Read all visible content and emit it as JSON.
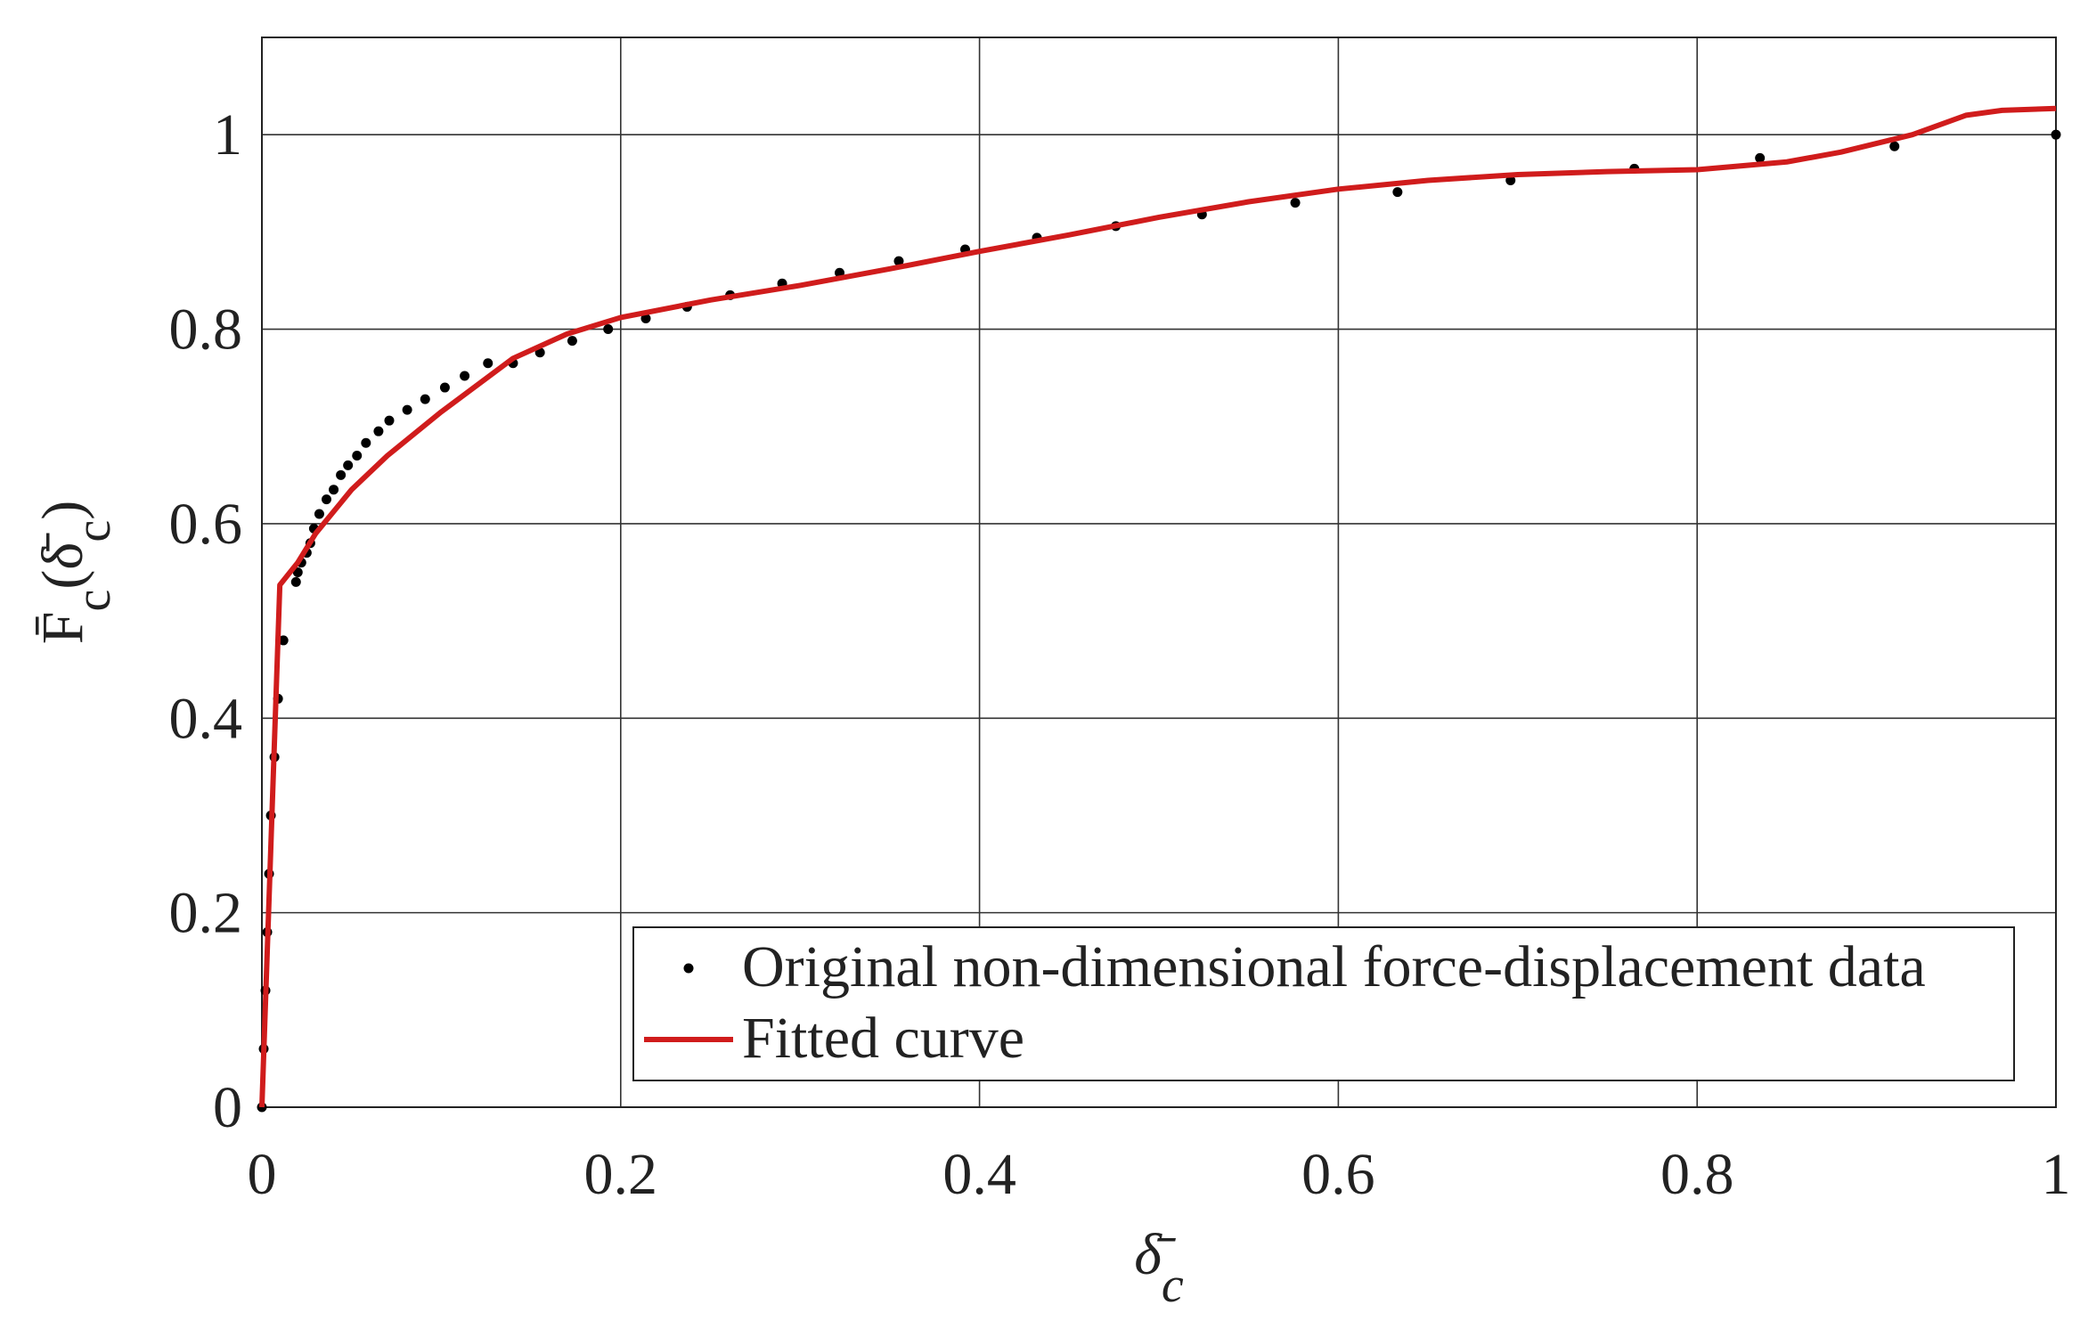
{
  "chart_data": {
    "type": "scatter",
    "xlabel_parts": [
      {
        "text": "δ̄"
      },
      {
        "text": "c",
        "sub": true
      }
    ],
    "ylabel_parts": [
      {
        "text": "F̄"
      },
      {
        "text": "c",
        "sub": true
      },
      {
        "text": "(δ̄"
      },
      {
        "text": "c",
        "sub": true
      },
      {
        "text": ")"
      }
    ],
    "xlim": [
      0,
      1
    ],
    "ylim": [
      0,
      1.1
    ],
    "xticks": [
      0,
      0.2,
      0.4,
      0.6,
      0.8,
      1
    ],
    "yticks": [
      0,
      0.2,
      0.4,
      0.6,
      0.8,
      1
    ],
    "grid": true,
    "legend": "lower right",
    "series": [
      {
        "name": "Original non-dimensional force-displacement data",
        "type": "scatter",
        "color": "#000000",
        "x": [
          0,
          0.001,
          0.002,
          0.003,
          0.004,
          0.005,
          0.007,
          0.009,
          0.012,
          0.019,
          0.02,
          0.022,
          0.025,
          0.027,
          0.029,
          0.032,
          0.036,
          0.04,
          0.044,
          0.048,
          0.053,
          0.058,
          0.065,
          0.071,
          0.081,
          0.091,
          0.102,
          0.113,
          0.126,
          0.14,
          0.155,
          0.173,
          0.193,
          0.214,
          0.237,
          0.261,
          0.29,
          0.322,
          0.355,
          0.392,
          0.432,
          0.476,
          0.524,
          0.576,
          0.633,
          0.696,
          0.765,
          0.835,
          0.91,
          1.0
        ],
        "values": [
          0,
          0.06,
          0.12,
          0.18,
          0.24,
          0.3,
          0.36,
          0.42,
          0.48,
          0.54,
          0.55,
          0.56,
          0.57,
          0.58,
          0.595,
          0.61,
          0.625,
          0.635,
          0.65,
          0.66,
          0.67,
          0.683,
          0.695,
          0.706,
          0.717,
          0.728,
          0.74,
          0.752,
          0.765,
          0.765,
          0.776,
          0.788,
          0.8,
          0.811,
          0.823,
          0.835,
          0.847,
          0.858,
          0.87,
          0.882,
          0.894,
          0.906,
          0.918,
          0.93,
          0.941,
          0.953,
          0.965,
          0.976,
          0.988,
          1.0
        ]
      },
      {
        "name": "Fitted curve",
        "type": "line",
        "color": "#d01c1c",
        "x": [
          0,
          0.01,
          0.02,
          0.03,
          0.05,
          0.07,
          0.1,
          0.14,
          0.17,
          0.2,
          0.25,
          0.3,
          0.35,
          0.4,
          0.45,
          0.5,
          0.55,
          0.6,
          0.65,
          0.7,
          0.75,
          0.8,
          0.85,
          0.88,
          0.92,
          0.95,
          0.97,
          1.0
        ],
        "values": [
          0,
          0.537,
          0.56,
          0.59,
          0.635,
          0.67,
          0.715,
          0.77,
          0.795,
          0.812,
          0.83,
          0.845,
          0.862,
          0.88,
          0.897,
          0.915,
          0.931,
          0.944,
          0.953,
          0.959,
          0.962,
          0.964,
          0.972,
          0.982,
          1.0,
          1.02,
          1.025,
          1.027
        ]
      }
    ]
  }
}
